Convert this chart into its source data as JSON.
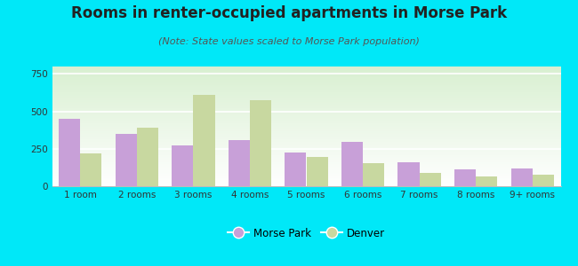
{
  "title": "Rooms in renter-occupied apartments in Morse Park",
  "subtitle": "(Note: State values scaled to Morse Park population)",
  "categories": [
    "1 room",
    "2 rooms",
    "3 rooms",
    "4 rooms",
    "5 rooms",
    "6 rooms",
    "7 rooms",
    "8 rooms",
    "9+ rooms"
  ],
  "morse_park": [
    450,
    350,
    270,
    310,
    225,
    295,
    160,
    115,
    120
  ],
  "denver": [
    220,
    390,
    610,
    575,
    195,
    155,
    90,
    65,
    75
  ],
  "morse_park_color": "#c8a0d8",
  "denver_color": "#c8d8a0",
  "background_outer": "#00e8f8",
  "ylim": [
    0,
    800
  ],
  "yticks": [
    0,
    250,
    500,
    750
  ],
  "bar_width": 0.38,
  "title_fontsize": 12,
  "subtitle_fontsize": 8,
  "tick_fontsize": 7.5,
  "legend_fontsize": 8.5
}
